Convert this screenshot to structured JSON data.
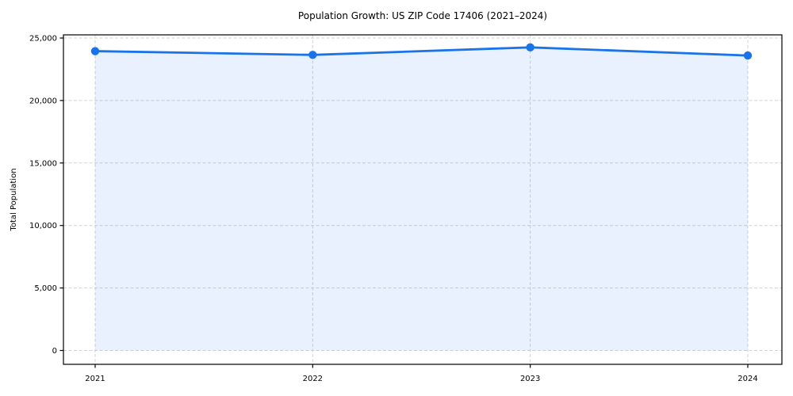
{
  "chart_data": {
    "type": "area",
    "title": "Population Growth: US ZIP Code 17406 (2021–2024)",
    "xlabel": "",
    "ylabel": "Total Population",
    "categories": [
      "2021",
      "2022",
      "2023",
      "2024"
    ],
    "series": [
      {
        "name": "Total Population",
        "values": [
          23950,
          23650,
          24250,
          23600
        ]
      }
    ],
    "ylim": [
      0,
      25000
    ],
    "yticks": [
      0,
      5000,
      10000,
      15000,
      20000,
      25000
    ],
    "ytick_labels": [
      "0",
      "5,000",
      "10,000",
      "15,000",
      "20,000",
      "25,000"
    ],
    "grid": true,
    "grid_style": "dashed",
    "legend": false,
    "colors": {
      "line": "#1a73e8",
      "marker": "#1a73e8",
      "fill": "rgba(26,115,232,0.10)",
      "grid": "#d2d2d2",
      "spine": "#000000",
      "background": "#ffffff"
    }
  }
}
